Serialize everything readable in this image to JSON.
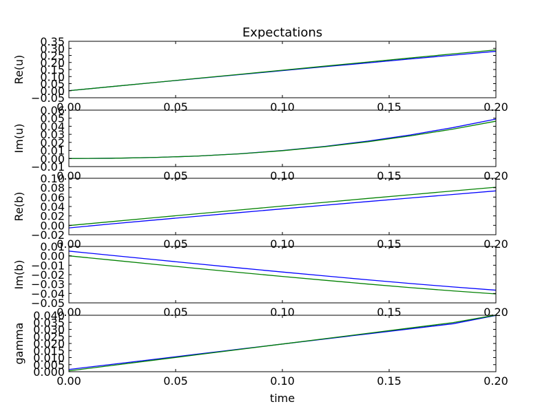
{
  "figure": {
    "title": "Expectations",
    "xlabel": "time"
  },
  "colors": {
    "series_1": "#0000ff",
    "series_2": "#008000",
    "axes": "#000000",
    "background": "#ffffff"
  },
  "chart_data": [
    {
      "type": "line",
      "title": "Expectations",
      "xlabel": "",
      "ylabel": "Re(u)",
      "xlim": [
        0.0,
        0.2
      ],
      "ylim": [
        -0.05,
        0.35
      ],
      "xticks": [
        "0.00",
        "0.05",
        "0.10",
        "0.15",
        "0.20"
      ],
      "yticks": [
        "−0.05",
        "0.00",
        "0.05",
        "0.10",
        "0.15",
        "0.20",
        "0.25",
        "0.30",
        "0.35"
      ],
      "grid": false,
      "x": [
        0.0,
        0.02,
        0.04,
        0.06,
        0.08,
        0.1,
        0.12,
        0.14,
        0.16,
        0.18,
        0.2
      ],
      "series": [
        {
          "values": [
            0.0,
            0.029,
            0.058,
            0.086,
            0.114,
            0.142,
            0.17,
            0.197,
            0.225,
            0.252,
            0.279
          ]
        },
        {
          "values": [
            0.0,
            0.029,
            0.058,
            0.087,
            0.116,
            0.145,
            0.174,
            0.203,
            0.232,
            0.261,
            0.289
          ]
        }
      ]
    },
    {
      "type": "line",
      "title": "",
      "xlabel": "",
      "ylabel": "Im(u)",
      "xlim": [
        0.0,
        0.2
      ],
      "ylim": [
        -0.01,
        0.06
      ],
      "xticks": [
        "0.00",
        "0.05",
        "0.10",
        "0.15",
        "0.20"
      ],
      "yticks": [
        "−0.01",
        "0.00",
        "0.01",
        "0.02",
        "0.03",
        "0.04",
        "0.05",
        "0.06"
      ],
      "grid": false,
      "x": [
        0.0,
        0.02,
        0.04,
        0.06,
        0.08,
        0.1,
        0.12,
        0.14,
        0.16,
        0.18,
        0.2
      ],
      "series": [
        {
          "values": [
            0.0,
            0.0003,
            0.0013,
            0.003,
            0.0059,
            0.0099,
            0.0151,
            0.0216,
            0.0293,
            0.0384,
            0.0489
          ]
        },
        {
          "values": [
            0.0,
            0.0003,
            0.0013,
            0.003,
            0.0058,
            0.0097,
            0.0147,
            0.0208,
            0.0281,
            0.0365,
            0.0463
          ]
        }
      ]
    },
    {
      "type": "line",
      "title": "",
      "xlabel": "",
      "ylabel": "Re(b)",
      "xlim": [
        0.0,
        0.2
      ],
      "ylim": [
        -0.02,
        0.1
      ],
      "xticks": [
        "0.00",
        "0.05",
        "0.10",
        "0.15",
        "0.20"
      ],
      "yticks": [
        "−0.02",
        "0.00",
        "0.02",
        "0.04",
        "0.06",
        "0.08",
        "0.10"
      ],
      "grid": false,
      "x": [
        0.0,
        0.02,
        0.04,
        0.06,
        0.08,
        0.1,
        0.12,
        0.14,
        0.16,
        0.18,
        0.2
      ],
      "series": [
        {
          "values": [
            -0.0055,
            0.003,
            0.0112,
            0.0192,
            0.0271,
            0.035,
            0.0428,
            0.0505,
            0.0581,
            0.0656,
            0.0732
          ]
        },
        {
          "values": [
            -0.0005,
            0.0079,
            0.0162,
            0.0245,
            0.0327,
            0.0409,
            0.049,
            0.0571,
            0.0651,
            0.0731,
            0.081
          ]
        }
      ]
    },
    {
      "type": "line",
      "title": "",
      "xlabel": "",
      "ylabel": "Im(b)",
      "xlim": [
        0.0,
        0.2
      ],
      "ylim": [
        -0.05,
        0.01
      ],
      "xticks": [
        "0.00",
        "0.05",
        "0.10",
        "0.15",
        "0.20"
      ],
      "yticks": [
        "−0.05",
        "−0.04",
        "−0.03",
        "−0.02",
        "−0.01",
        "0.00",
        "0.01"
      ],
      "grid": false,
      "x": [
        0.0,
        0.02,
        0.04,
        0.06,
        0.08,
        0.1,
        0.12,
        0.14,
        0.16,
        0.18,
        0.2
      ],
      "series": [
        {
          "values": [
            0.005,
            0.0005,
            -0.004,
            -0.0085,
            -0.0129,
            -0.0172,
            -0.0214,
            -0.0255,
            -0.0294,
            -0.0331,
            -0.0365
          ]
        },
        {
          "values": [
            0.0,
            -0.0045,
            -0.009,
            -0.0134,
            -0.0177,
            -0.0219,
            -0.026,
            -0.03,
            -0.0338,
            -0.0373,
            -0.0405
          ]
        }
      ]
    },
    {
      "type": "line",
      "title": "",
      "xlabel": "time",
      "ylabel": "gamma",
      "xlim": [
        0.0,
        0.2
      ],
      "ylim": [
        0.0,
        0.04
      ],
      "xticks": [
        "0.00",
        "0.05",
        "0.10",
        "0.15",
        "0.20"
      ],
      "yticks": [
        "0.000",
        "0.005",
        "0.010",
        "0.015",
        "0.020",
        "0.025",
        "0.030",
        "0.035",
        "0.040"
      ],
      "grid": false,
      "x": [
        0.0,
        0.02,
        0.04,
        0.06,
        0.08,
        0.1,
        0.12,
        0.14,
        0.16,
        0.18,
        0.2
      ],
      "series": [
        {
          "values": [
            0.0016,
            0.0052,
            0.0088,
            0.0124,
            0.016,
            0.0196,
            0.0232,
            0.0268,
            0.0304,
            0.034,
            0.0399
          ]
        },
        {
          "values": [
            0.0006,
            0.0044,
            0.0082,
            0.012,
            0.0158,
            0.0196,
            0.0234,
            0.0272,
            0.031,
            0.0348,
            0.0401
          ]
        }
      ]
    }
  ]
}
